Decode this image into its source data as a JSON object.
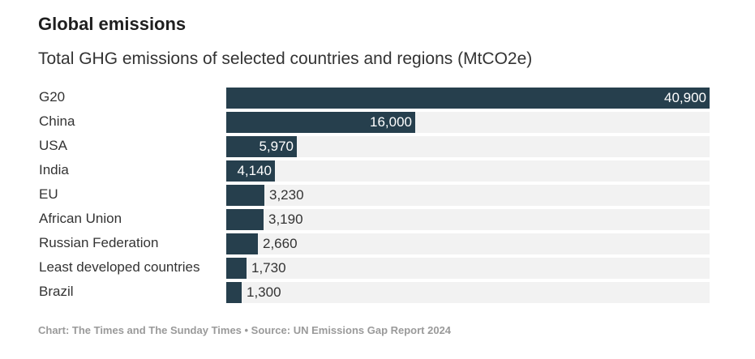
{
  "header": {
    "title": "Global emissions",
    "subtitle": "Total GHG emissions of selected countries and regions (MtCO2e)"
  },
  "footer": {
    "source": "Chart: The Times and The Sunday Times • Source: UN Emissions Gap Report 2024"
  },
  "colors": {
    "bar": "#263f4d",
    "track": "#f2f2f2"
  },
  "chart_data": {
    "type": "bar",
    "orientation": "horizontal",
    "title": "Global emissions",
    "subtitle": "Total GHG emissions of selected countries and regions (MtCO2e)",
    "categories": [
      "G20",
      "China",
      "USA",
      "India",
      "EU",
      "African Union",
      "Russian Federation",
      "Least developed countries",
      "Brazil"
    ],
    "values": [
      40900,
      16000,
      5970,
      4140,
      3230,
      3190,
      2660,
      1730,
      1300
    ],
    "value_labels": [
      "40,900",
      "16,000",
      "5,970",
      "4,140",
      "3,230",
      "3,190",
      "2,660",
      "1,730",
      "1,300"
    ],
    "xlim": [
      0,
      40900
    ],
    "grid": false,
    "legend": "none"
  }
}
